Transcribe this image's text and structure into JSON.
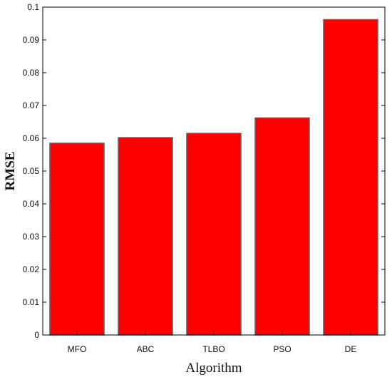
{
  "chart_data": {
    "type": "bar",
    "categories": [
      "MFO",
      "ABC",
      "TLBO",
      "PSO",
      "DE"
    ],
    "values": [
      0.0585,
      0.0602,
      0.0615,
      0.0662,
      0.0962
    ],
    "xlabel": "Algorithm",
    "ylabel": "RMSE",
    "ylim": [
      0,
      0.1
    ],
    "yticks": [
      "0",
      "0.01",
      "0.02",
      "0.03",
      "0.04",
      "0.05",
      "0.06",
      "0.07",
      "0.08",
      "0.09",
      "0.1"
    ],
    "bar_color": "#ff0000",
    "bar_edge_color": "#4a6a6a",
    "grid": false
  }
}
